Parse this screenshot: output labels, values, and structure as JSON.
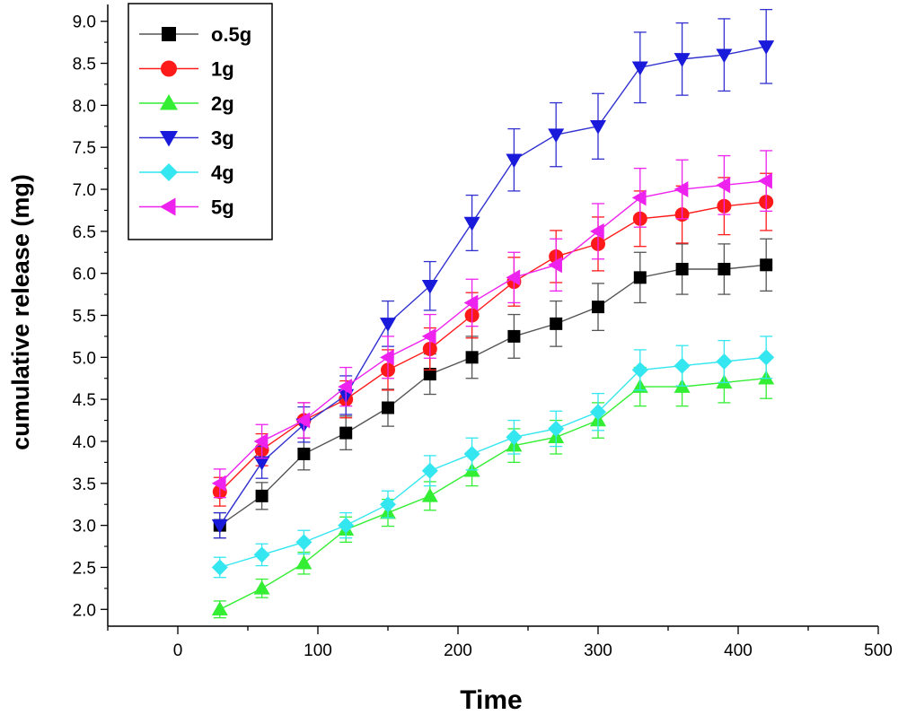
{
  "chart_data": {
    "type": "line",
    "title": "",
    "xlabel": "Time",
    "ylabel": "cumulative release (mg)",
    "xlim": [
      -50,
      500
    ],
    "ylim": [
      1.8,
      9.2
    ],
    "xticks": [
      0,
      100,
      200,
      300,
      400,
      500
    ],
    "yticks": [
      2.0,
      2.5,
      3.0,
      3.5,
      4.0,
      4.5,
      5.0,
      5.5,
      6.0,
      6.5,
      7.0,
      7.5,
      8.0,
      8.5,
      9.0
    ],
    "grid": false,
    "legend_position": "top-left",
    "x": [
      30,
      60,
      90,
      120,
      150,
      180,
      210,
      240,
      270,
      300,
      330,
      360,
      390,
      420
    ],
    "series": [
      {
        "name": "o.5g",
        "color": "#000000",
        "line_color": "#555555",
        "marker": "square",
        "values": [
          3.0,
          3.35,
          3.85,
          4.1,
          4.4,
          4.8,
          5.0,
          5.25,
          5.4,
          5.6,
          5.95,
          6.05,
          6.05,
          6.1
        ],
        "errors": [
          0.15,
          0.16,
          0.19,
          0.2,
          0.22,
          0.24,
          0.25,
          0.26,
          0.27,
          0.28,
          0.3,
          0.3,
          0.3,
          0.31
        ]
      },
      {
        "name": "1g",
        "color": "#ff1a1a",
        "line_color": "#ff1a1a",
        "marker": "circle",
        "values": [
          3.4,
          3.9,
          4.25,
          4.5,
          4.85,
          5.1,
          5.5,
          5.9,
          6.2,
          6.35,
          6.65,
          6.7,
          6.8,
          6.85
        ],
        "errors": [
          0.17,
          0.19,
          0.21,
          0.22,
          0.24,
          0.25,
          0.27,
          0.29,
          0.31,
          0.32,
          0.33,
          0.34,
          0.34,
          0.34
        ]
      },
      {
        "name": "2g",
        "color": "#33ee33",
        "line_color": "#33ee33",
        "marker": "triangle-up",
        "values": [
          2.0,
          2.25,
          2.55,
          2.95,
          3.15,
          3.35,
          3.65,
          3.95,
          4.05,
          4.25,
          4.65,
          4.65,
          4.7,
          4.75
        ],
        "errors": [
          0.1,
          0.11,
          0.13,
          0.15,
          0.16,
          0.17,
          0.18,
          0.2,
          0.2,
          0.21,
          0.23,
          0.23,
          0.24,
          0.24
        ]
      },
      {
        "name": "3g",
        "color": "#1a1adb",
        "line_color": "#3030d0",
        "marker": "triangle-down",
        "values": [
          3.0,
          3.75,
          4.2,
          4.55,
          5.4,
          5.85,
          6.6,
          7.35,
          7.65,
          7.75,
          8.45,
          8.55,
          8.6,
          8.7
        ],
        "errors": [
          0.15,
          0.19,
          0.21,
          0.23,
          0.27,
          0.29,
          0.33,
          0.37,
          0.38,
          0.39,
          0.42,
          0.43,
          0.43,
          0.44
        ]
      },
      {
        "name": "4g",
        "color": "#33e6f0",
        "line_color": "#33e6f0",
        "marker": "diamond",
        "values": [
          2.5,
          2.65,
          2.8,
          3.0,
          3.25,
          3.65,
          3.85,
          4.05,
          4.15,
          4.35,
          4.85,
          4.9,
          4.95,
          5.0
        ],
        "errors": [
          0.12,
          0.13,
          0.14,
          0.15,
          0.16,
          0.18,
          0.19,
          0.2,
          0.21,
          0.22,
          0.24,
          0.24,
          0.25,
          0.25
        ]
      },
      {
        "name": "5g",
        "color": "#ee22ee",
        "line_color": "#ee22ee",
        "marker": "triangle-left",
        "values": [
          3.5,
          4.0,
          4.25,
          4.65,
          5.0,
          5.25,
          5.65,
          5.95,
          6.1,
          6.5,
          6.9,
          7.0,
          7.05,
          7.1
        ],
        "errors": [
          0.17,
          0.2,
          0.21,
          0.23,
          0.25,
          0.26,
          0.28,
          0.3,
          0.31,
          0.33,
          0.35,
          0.35,
          0.35,
          0.36
        ]
      }
    ]
  }
}
